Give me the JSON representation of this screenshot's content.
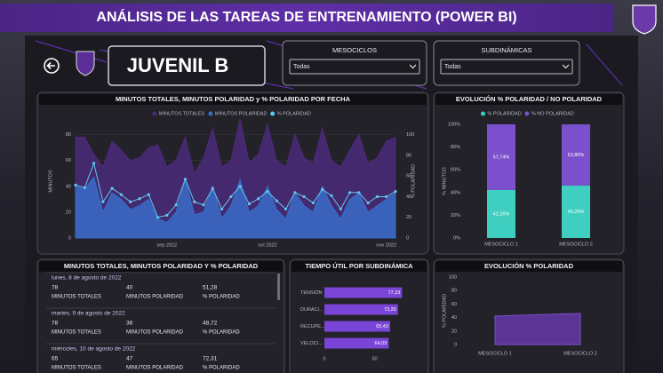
{
  "header": {
    "title": "ANÁLISIS DE LAS TAREAS DE ENTRENAMIENTO (POWER BI)"
  },
  "team": "JUVENIL B",
  "slicers": [
    {
      "label": "MESOCICLOS",
      "value": "Todas"
    },
    {
      "label": "SUBDINÁMICAS",
      "value": "Todas"
    }
  ],
  "table": {
    "title": "MINUTOS TOTALES, MINUTOS POLARIDAD Y % POLARIDAD",
    "columns": [
      "MINUTOS TOTALES",
      "MINUTOS POLARIDAD",
      "% POLARIDAD"
    ],
    "rows": [
      {
        "date": "lunes, 8 de agosto de 2022",
        "cells": [
          "78",
          "40",
          "51,28"
        ]
      },
      {
        "date": "martes, 9 de agosto de 2022",
        "cells": [
          "78",
          "38",
          "48,72"
        ]
      },
      {
        "date": "miércoles, 10 de agosto de 2022",
        "cells": [
          "65",
          "47",
          "72,31"
        ]
      }
    ]
  },
  "chart_data": [
    {
      "type": "line",
      "title": "MINUTOS TOTALES, MINUTOS POLARIDAD y % POLARIDAD POR FECHA",
      "y_label": "MINUTOS",
      "y2_label": "% POLARIDAD",
      "categories": [
        null,
        null,
        null,
        null,
        null,
        null,
        null,
        null,
        null,
        null,
        "sep 2022",
        null,
        null,
        null,
        null,
        null,
        null,
        null,
        null,
        null,
        null,
        "oct 2022",
        null,
        null,
        null,
        null,
        null,
        null,
        null,
        null,
        null,
        null,
        null,
        null,
        "nov 2022",
        null
      ],
      "series": [
        {
          "name": "MINUTOS TOTALES",
          "color": "#4b2a7a",
          "area": true,
          "values": [
            78,
            78,
            65,
            55,
            75,
            68,
            60,
            62,
            70,
            72,
            55,
            60,
            78,
            50,
            62,
            85,
            55,
            60,
            92,
            58,
            65,
            88,
            60,
            55,
            80,
            62,
            58,
            85,
            60,
            55,
            68,
            80,
            58,
            62,
            75,
            78
          ]
        },
        {
          "name": "MINUTOS POLARIDAD",
          "color": "#3a6cc8",
          "area": true,
          "values": [
            40,
            38,
            47,
            20,
            35,
            30,
            22,
            25,
            30,
            15,
            12,
            20,
            45,
            18,
            20,
            40,
            15,
            25,
            45,
            20,
            25,
            40,
            22,
            15,
            35,
            25,
            20,
            40,
            25,
            15,
            30,
            35,
            20,
            25,
            30,
            35
          ]
        },
        {
          "name": "% POLARIDAD",
          "color": "#5fc8f0",
          "axis": "y2",
          "values": [
            51.28,
            48.72,
            72.31,
            35,
            48,
            42,
            35,
            38,
            42,
            20,
            22,
            32,
            57,
            35,
            32,
            48,
            28,
            40,
            50,
            33,
            38,
            45,
            36,
            28,
            44,
            40,
            34,
            47,
            41,
            28,
            44,
            44,
            34,
            40,
            40,
            45
          ]
        }
      ],
      "ylim": [
        0,
        88
      ],
      "yticks": [
        0,
        20,
        40,
        60,
        80
      ],
      "y2lim": [
        0,
        110
      ],
      "y2ticks": [
        0,
        20,
        40,
        60,
        80,
        100
      ]
    },
    {
      "type": "bar",
      "stacked": true,
      "title": "EVOLUCIÓN % POLARIDAD / NO POLARIDAD",
      "y_label": "% MINUTOS",
      "categories": [
        "MESOCICLO 1",
        "MESOCICLO 2"
      ],
      "series": [
        {
          "name": "% POLARIDAD",
          "color": "#3fcfc0",
          "values": [
            42.26,
            46.2
          ],
          "value_labels": [
            "42,26%",
            "46,20%"
          ]
        },
        {
          "name": "% NO POLARIDAD",
          "color": "#7c4fcc",
          "values": [
            57.74,
            53.8
          ],
          "value_labels": [
            "57,74%",
            "53,80%"
          ]
        }
      ],
      "ylim": [
        0,
        100
      ],
      "yticks": [
        {
          "value": 0,
          "label": "0%"
        },
        {
          "value": 20,
          "label": "20%"
        },
        {
          "value": 40,
          "label": "40%"
        },
        {
          "value": 60,
          "label": "60%"
        },
        {
          "value": 80,
          "label": "80%"
        },
        {
          "value": 100,
          "label": "100%"
        }
      ]
    },
    {
      "type": "hbar",
      "title": "TIEMPO ÚTIL POR SUBDINÁMICA",
      "categories": [
        "TENSIÓN",
        "DURACI...",
        "RECUPE...",
        "VELOCI..."
      ],
      "values": [
        77.33,
        73.2,
        65.43,
        64.09
      ],
      "value_labels": [
        "77,33",
        "73,20",
        "65,43",
        "64,09"
      ],
      "color": "#7a45d6",
      "xlim": [
        0,
        100
      ],
      "xticks": [
        0,
        50
      ]
    },
    {
      "type": "area",
      "title": "EVOLUCIÓN % POLARIDAD",
      "y_label": "% POLARIDAD",
      "categories": [
        "MESOCICLO 1",
        "MESOCICLO 2"
      ],
      "values": [
        42.26,
        46.2
      ],
      "color": "#5a3596",
      "ylim": [
        0,
        100
      ],
      "yticks": [
        0,
        20,
        40,
        60,
        80,
        100
      ]
    }
  ]
}
